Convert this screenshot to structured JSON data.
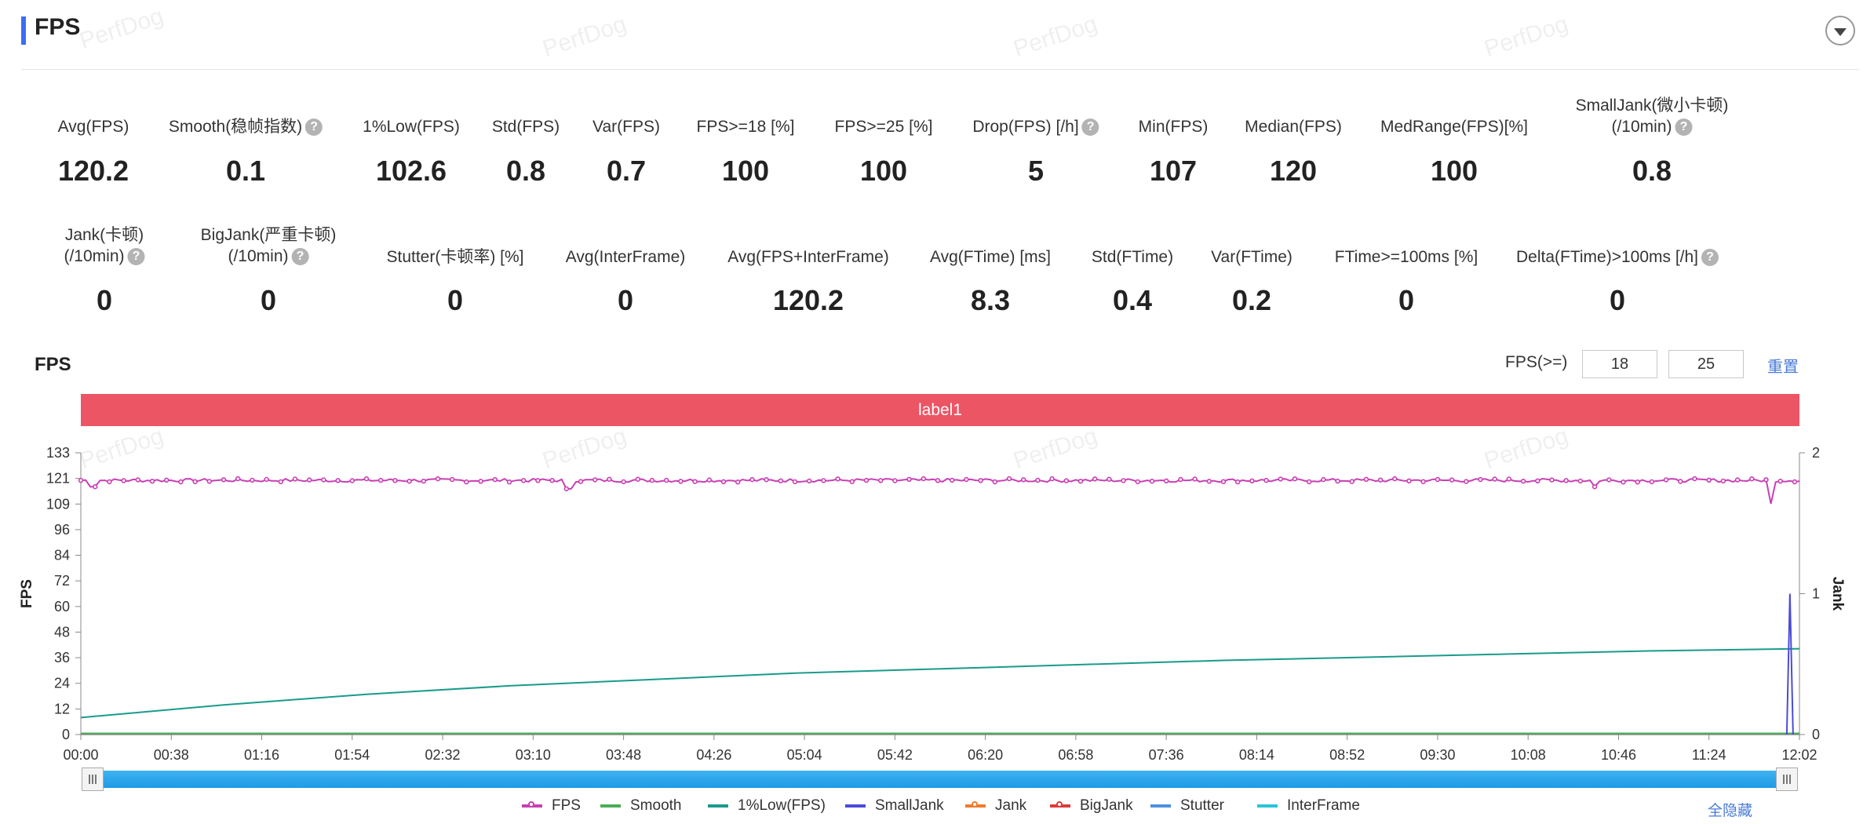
{
  "header": {
    "title": "FPS"
  },
  "watermark": "PerfDog",
  "metrics": [
    {
      "label": "Avg(FPS)",
      "value": "120.2",
      "help": false
    },
    {
      "label": "Smooth(稳帧指数)",
      "value": "0.1",
      "help": true
    },
    {
      "label": "1%Low(FPS)",
      "value": "102.6",
      "help": false
    },
    {
      "label": "Std(FPS)",
      "value": "0.8",
      "help": false
    },
    {
      "label": "Var(FPS)",
      "value": "0.7",
      "help": false
    },
    {
      "label": "FPS>=18 [%]",
      "value": "100",
      "help": false
    },
    {
      "label": "FPS>=25 [%]",
      "value": "100",
      "help": false
    },
    {
      "label": "Drop(FPS) [/h]",
      "value": "5",
      "help": true
    },
    {
      "label": "Min(FPS)",
      "value": "107",
      "help": false
    },
    {
      "label": "Median(FPS)",
      "value": "120",
      "help": false
    },
    {
      "label": "MedRange(FPS)[%]",
      "value": "100",
      "help": false
    },
    {
      "label": "SmallJank(微小卡顿)",
      "label2": "(/10min)",
      "value": "0.8",
      "help": true
    },
    {
      "label": "Jank(卡顿)",
      "label2": "(/10min)",
      "value": "0",
      "help": true
    },
    {
      "label": "BigJank(严重卡顿)",
      "label2": "(/10min)",
      "value": "0",
      "help": true
    },
    {
      "label": "Stutter(卡顿率) [%]",
      "value": "0",
      "help": false
    },
    {
      "label": "Avg(InterFrame)",
      "value": "0",
      "help": false
    },
    {
      "label": "Avg(FPS+InterFrame)",
      "value": "120.2",
      "help": false
    },
    {
      "label": "Avg(FTime) [ms]",
      "value": "8.3",
      "help": false
    },
    {
      "label": "Std(FTime)",
      "value": "0.4",
      "help": false
    },
    {
      "label": "Var(FTime)",
      "value": "0.2",
      "help": false
    },
    {
      "label": "FTime>=100ms [%]",
      "value": "0",
      "help": false
    },
    {
      "label": "Delta(FTime)>100ms [/h]",
      "value": "0",
      "help": true
    }
  ],
  "fps_section": {
    "title": "FPS",
    "threshold_label": "FPS(>=)",
    "threshold1": "18",
    "threshold2": "25",
    "reset_label": "重置"
  },
  "label_band": "label1",
  "hide_all_label": "全隐藏",
  "chart_data": {
    "type": "line",
    "ylabel": "FPS",
    "y2label": "Jank",
    "ylim": [
      0,
      133
    ],
    "y2lim": [
      0,
      2
    ],
    "yticks": [
      "0",
      "12",
      "24",
      "36",
      "48",
      "60",
      "72",
      "84",
      "96",
      "109",
      "121",
      "133"
    ],
    "y2ticks": [
      "0",
      "1",
      "2"
    ],
    "xticks": [
      "00:00",
      "00:38",
      "01:16",
      "01:54",
      "02:32",
      "03:10",
      "03:48",
      "04:26",
      "05:04",
      "05:42",
      "06:20",
      "06:58",
      "07:36",
      "08:14",
      "08:52",
      "09:30",
      "10:08",
      "10:46",
      "11:24",
      "12:02"
    ],
    "x_range_seconds": [
      0,
      722
    ],
    "series": [
      {
        "name": "FPS",
        "color": "#c93fb4",
        "marker": true,
        "baseline": 120,
        "dips": [
          [
            5,
            117
          ],
          [
            205,
            116
          ],
          [
            636,
            117
          ],
          [
            710,
            109
          ]
        ]
      },
      {
        "name": "Smooth",
        "color": "#4aae56",
        "marker": false
      },
      {
        "name": "1%Low(FPS)",
        "color": "#199b8b",
        "marker": false,
        "points": [
          [
            0,
            8
          ],
          [
            60,
            14
          ],
          [
            120,
            19
          ],
          [
            180,
            23
          ],
          [
            240,
            26
          ],
          [
            300,
            29
          ],
          [
            360,
            31
          ],
          [
            420,
            33
          ],
          [
            480,
            35
          ],
          [
            540,
            36.5
          ],
          [
            600,
            38
          ],
          [
            660,
            39.5
          ],
          [
            722,
            40.5
          ]
        ]
      },
      {
        "name": "SmallJank",
        "color": "#4b4bd8",
        "marker": false,
        "spikes": [
          [
            718,
            1
          ]
        ]
      },
      {
        "name": "Jank",
        "color": "#f07b2c",
        "marker": true
      },
      {
        "name": "BigJank",
        "color": "#dd3b3b",
        "marker": true
      },
      {
        "name": "Stutter",
        "color": "#4a90e2",
        "marker": false
      },
      {
        "name": "InterFrame",
        "color": "#2bc4d8",
        "marker": false
      }
    ]
  }
}
